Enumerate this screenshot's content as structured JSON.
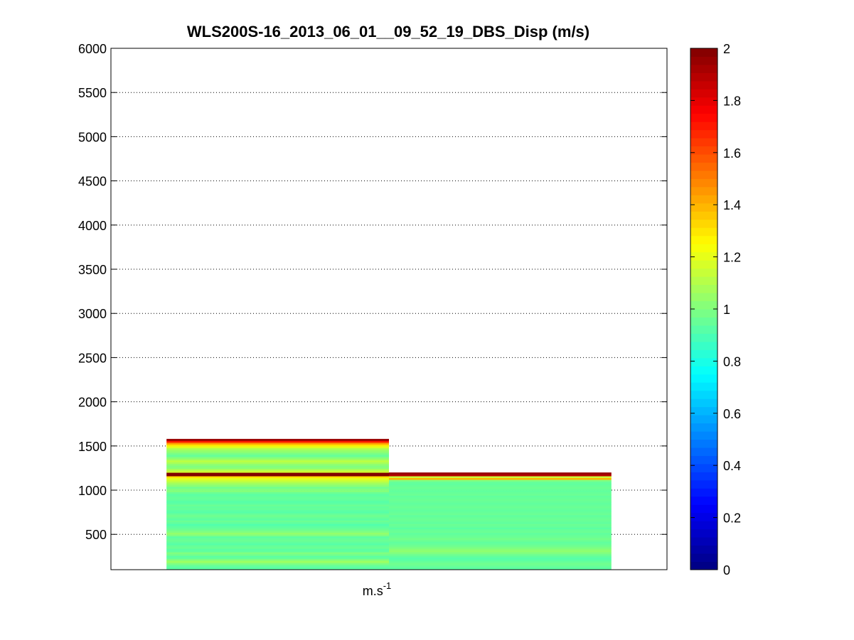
{
  "chart_data": {
    "type": "heatmap",
    "title": "WLS200S-16_2013_06_01__09_52_19_DBS_Disp (m/s)",
    "xlabel": "m.s-1",
    "xlabel_base": "m.s",
    "xlabel_sup": "-1",
    "ylabel": "",
    "ylim": [
      100,
      6000
    ],
    "yticks": [
      500,
      1000,
      1500,
      2000,
      2500,
      3000,
      3500,
      4000,
      4500,
      5000,
      5500,
      6000
    ],
    "grid": "y-dotted",
    "colormap": "jet",
    "colorbar": {
      "range": [
        0,
        2
      ],
      "ticks": [
        0,
        0.2,
        0.4,
        0.6,
        0.8,
        1,
        1.2,
        1.4,
        1.6,
        1.8,
        2
      ],
      "tick_labels": [
        "0",
        "0.2",
        "0.4",
        "0.6",
        "0.8",
        "1",
        "1.2",
        "1.4",
        "1.6",
        "1.8",
        "2"
      ]
    },
    "columns": [
      {
        "index": 1,
        "altitude_start": 100,
        "altitude_step": 20,
        "values": [
          0.93,
          0.93,
          0.96,
          1.0,
          1.06,
          1.02,
          0.95,
          0.93,
          0.98,
          1.0,
          0.94,
          0.93,
          0.96,
          0.95,
          0.92,
          0.94,
          0.96,
          0.95,
          0.93,
          1.0,
          1.04,
          1.0,
          0.97,
          0.95,
          0.93,
          0.91,
          0.94,
          0.96,
          0.93,
          0.95,
          0.97,
          0.95,
          0.92,
          0.93,
          0.95,
          0.94,
          0.96,
          0.93,
          0.92,
          0.94,
          0.95,
          0.94,
          0.93,
          0.96,
          1.01,
          1.0,
          0.97,
          1.02,
          1.05,
          1.1,
          1.15,
          1.2,
          1.3,
          2.0,
          2.0,
          1.15,
          1.1,
          1.02,
          1.0,
          1.03,
          1.08,
          1.12,
          1.06,
          1.0,
          0.95,
          0.98,
          1.02,
          1.05,
          1.1,
          1.2,
          1.3,
          1.45,
          1.7,
          1.95
        ]
      },
      {
        "index": 2,
        "altitude_start": 100,
        "altitude_step": 20,
        "values": [
          0.93,
          0.94,
          0.96,
          0.97,
          0.95,
          0.93,
          0.92,
          0.94,
          0.97,
          1.0,
          1.03,
          1.02,
          0.99,
          0.97,
          0.95,
          0.94,
          0.96,
          0.98,
          0.96,
          0.95,
          0.94,
          0.96,
          0.95,
          0.93,
          0.95,
          0.96,
          0.94,
          0.95,
          0.96,
          0.95,
          0.94,
          0.96,
          0.95,
          0.94,
          0.95,
          0.96,
          0.95,
          0.94,
          0.95,
          0.96,
          0.95,
          0.94,
          0.96,
          0.95,
          0.94,
          0.95,
          0.96,
          0.95,
          0.94,
          0.95,
          1.0,
          1.4,
          1.15,
          1.9,
          1.95
        ]
      }
    ]
  }
}
